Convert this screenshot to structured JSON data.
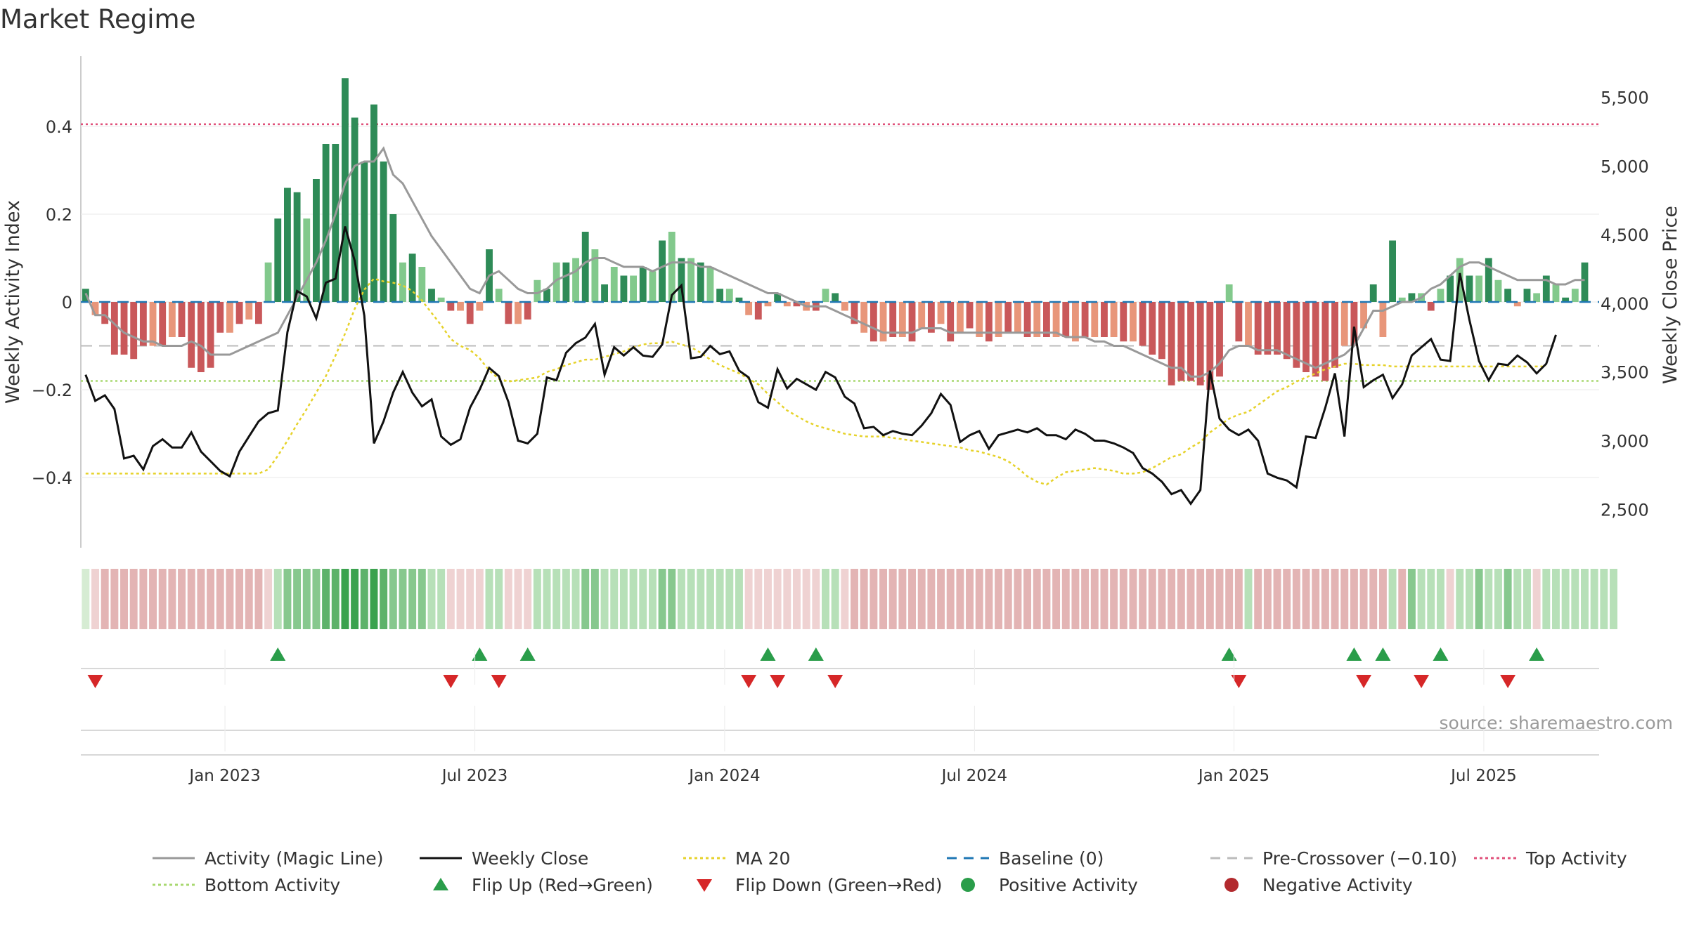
{
  "header": {
    "title": "Market Regime"
  },
  "source": "source: sharemaestro.com",
  "colors": {
    "pos_dark": "#2e8b57",
    "pos_light": "#82c98c",
    "neg_dark": "#c9585a",
    "neg_light": "#e8967a",
    "magic": "#999999",
    "close": "#111111",
    "ma20": "#e6d22a",
    "baseline": "#1f77b4",
    "precross": "#bbbbbb",
    "top": "#e0507a",
    "bottom": "#a8d870",
    "flip_up": "#2a9d4a",
    "flip_down": "#d62728"
  },
  "chart_data": {
    "type": "bar",
    "ylabel_left": "Weekly Activity Index",
    "ylabel_right": "Weekly Close Price",
    "yticks_left": [
      "0.4",
      "0.2",
      "0",
      "−0.2",
      "−0.4"
    ],
    "yticks_left_values": [
      0.4,
      0.2,
      0,
      -0.2,
      -0.4
    ],
    "yticks_right": [
      "5,500",
      "5,000",
      "4,500",
      "4,000",
      "3,500",
      "3,000",
      "2,500"
    ],
    "yticks_right_values": [
      5500,
      5000,
      4500,
      4000,
      3500,
      3000,
      2500
    ],
    "ylim_left": [
      -0.56,
      0.56
    ],
    "ylim_right": [
      2220,
      5800
    ],
    "xticks": [
      "Jan 2023",
      "Jul 2023",
      "Jan 2024",
      "Jul 2024",
      "Jan 2025",
      "Jul 2025"
    ],
    "xtick_weeks": [
      15,
      41,
      67,
      93,
      120,
      146
    ],
    "weeks": 158,
    "top_activity": 0.405,
    "bottom_activity": -0.18,
    "pre_crossover": -0.1,
    "baseline": 0,
    "activity": [
      0.03,
      -0.03,
      -0.05,
      -0.12,
      -0.12,
      -0.13,
      -0.1,
      -0.1,
      -0.1,
      -0.08,
      -0.08,
      -0.15,
      -0.16,
      -0.15,
      -0.07,
      -0.07,
      -0.05,
      -0.04,
      -0.05,
      0.09,
      0.19,
      0.26,
      0.25,
      0.19,
      0.28,
      0.36,
      0.36,
      0.51,
      0.42,
      0.32,
      0.45,
      0.32,
      0.2,
      0.09,
      0.11,
      0.08,
      0.03,
      0.01,
      -0.02,
      -0.02,
      -0.05,
      -0.02,
      0.12,
      0.03,
      -0.05,
      -0.05,
      -0.04,
      0.05,
      0.03,
      0.09,
      0.09,
      0.1,
      0.16,
      0.12,
      0.04,
      0.08,
      0.06,
      0.06,
      0.08,
      0.07,
      0.14,
      0.16,
      0.1,
      0.1,
      0.09,
      0.08,
      0.03,
      0.03,
      0.01,
      -0.03,
      -0.04,
      -0.01,
      0.02,
      -0.01,
      -0.01,
      -0.02,
      -0.02,
      0.03,
      0.02,
      -0.02,
      -0.05,
      -0.07,
      -0.09,
      -0.09,
      -0.08,
      -0.08,
      -0.09,
      -0.06,
      -0.07,
      -0.05,
      -0.09,
      -0.07,
      -0.06,
      -0.08,
      -0.09,
      -0.08,
      -0.07,
      -0.07,
      -0.08,
      -0.08,
      -0.08,
      -0.08,
      -0.08,
      -0.09,
      -0.08,
      -0.08,
      -0.08,
      -0.08,
      -0.09,
      -0.09,
      -0.1,
      -0.12,
      -0.13,
      -0.19,
      -0.18,
      -0.18,
      -0.19,
      -0.2,
      -0.17,
      0.04,
      -0.09,
      -0.1,
      -0.12,
      -0.12,
      -0.12,
      -0.13,
      -0.15,
      -0.16,
      -0.17,
      -0.18,
      -0.15,
      -0.1,
      -0.1,
      -0.06,
      0.04,
      -0.08,
      0.14,
      0.01,
      0.02,
      0.02,
      -0.02,
      0.03,
      0.06,
      0.1,
      0.06,
      0.06,
      0.1,
      0.05,
      0.03,
      -0.01,
      0.03,
      0.02,
      0.06,
      0.04,
      0.01,
      0.03,
      0.09,
      0.0
    ],
    "magic_line": [
      0.02,
      -0.03,
      -0.03,
      -0.05,
      -0.07,
      -0.08,
      -0.09,
      -0.09,
      -0.1,
      -0.1,
      -0.1,
      -0.09,
      -0.1,
      -0.12,
      -0.12,
      -0.12,
      -0.11,
      -0.1,
      -0.09,
      -0.08,
      -0.07,
      -0.03,
      0.01,
      0.05,
      0.09,
      0.14,
      0.2,
      0.27,
      0.31,
      0.32,
      0.32,
      0.35,
      0.29,
      0.27,
      0.23,
      0.19,
      0.15,
      0.12,
      0.09,
      0.06,
      0.03,
      0.02,
      0.06,
      0.07,
      0.05,
      0.03,
      0.02,
      0.02,
      0.03,
      0.05,
      0.06,
      0.07,
      0.09,
      0.1,
      0.1,
      0.09,
      0.08,
      0.08,
      0.08,
      0.07,
      0.08,
      0.09,
      0.09,
      0.09,
      0.08,
      0.08,
      0.07,
      0.06,
      0.05,
      0.04,
      0.03,
      0.02,
      0.02,
      0.01,
      0.0,
      -0.01,
      -0.01,
      -0.01,
      -0.02,
      -0.03,
      -0.04,
      -0.05,
      -0.06,
      -0.07,
      -0.07,
      -0.07,
      -0.07,
      -0.06,
      -0.06,
      -0.06,
      -0.07,
      -0.07,
      -0.07,
      -0.07,
      -0.07,
      -0.07,
      -0.07,
      -0.07,
      -0.07,
      -0.07,
      -0.07,
      -0.07,
      -0.08,
      -0.08,
      -0.08,
      -0.09,
      -0.09,
      -0.1,
      -0.1,
      -0.11,
      -0.12,
      -0.13,
      -0.14,
      -0.15,
      -0.15,
      -0.17,
      -0.17,
      -0.16,
      -0.14,
      -0.11,
      -0.1,
      -0.1,
      -0.11,
      -0.11,
      -0.11,
      -0.12,
      -0.13,
      -0.14,
      -0.15,
      -0.14,
      -0.13,
      -0.12,
      -0.1,
      -0.06,
      -0.02,
      -0.02,
      -0.01,
      0.0,
      0.0,
      0.01,
      0.03,
      0.04,
      0.06,
      0.08,
      0.09,
      0.09,
      0.08,
      0.07,
      0.06,
      0.05,
      0.05,
      0.05,
      0.05,
      0.04,
      0.04,
      0.05,
      0.05
    ],
    "weekly_close": [
      3480,
      3290,
      3330,
      3230,
      2870,
      2890,
      2790,
      2960,
      3010,
      2950,
      2950,
      3060,
      2920,
      2850,
      2780,
      2740,
      2920,
      3030,
      3140,
      3200,
      3220,
      3790,
      4090,
      4050,
      3890,
      4150,
      4180,
      4560,
      4310,
      3910,
      2980,
      3140,
      3350,
      3500,
      3350,
      3250,
      3300,
      3030,
      2970,
      3010,
      3240,
      3370,
      3530,
      3470,
      3280,
      3000,
      2980,
      3050,
      3460,
      3440,
      3640,
      3710,
      3750,
      3850,
      3480,
      3680,
      3620,
      3680,
      3620,
      3610,
      3700,
      4060,
      4130,
      3600,
      3610,
      3690,
      3630,
      3650,
      3510,
      3460,
      3280,
      3240,
      3520,
      3380,
      3450,
      3410,
      3370,
      3500,
      3460,
      3320,
      3270,
      3090,
      3100,
      3040,
      3070,
      3050,
      3040,
      3110,
      3200,
      3340,
      3260,
      2990,
      3040,
      3070,
      2940,
      3040,
      3060,
      3080,
      3060,
      3090,
      3040,
      3040,
      3010,
      3080,
      3050,
      3000,
      3000,
      2980,
      2950,
      2910,
      2800,
      2760,
      2700,
      2610,
      2640,
      2540,
      2640,
      3510,
      3160,
      3080,
      3040,
      3080,
      3000,
      2760,
      2730,
      2710,
      2660,
      3030,
      3020,
      3240,
      3490,
      3030,
      3830,
      3390,
      3440,
      3480,
      3310,
      3410,
      3620,
      3680,
      3740,
      3590,
      3580,
      4220,
      3880,
      3580,
      3440,
      3560,
      3550,
      3620,
      3570,
      3490,
      3560,
      3770
    ],
    "ma20": [
      2760,
      2760,
      2760,
      2760,
      2760,
      2760,
      2760,
      2760,
      2760,
      2760,
      2760,
      2760,
      2760,
      2760,
      2760,
      2760,
      2760,
      2760,
      2760,
      2790,
      2890,
      3000,
      3120,
      3230,
      3350,
      3470,
      3620,
      3780,
      3960,
      4100,
      4180,
      4160,
      4150,
      4130,
      4090,
      4020,
      3930,
      3840,
      3740,
      3690,
      3660,
      3600,
      3510,
      3450,
      3430,
      3440,
      3450,
      3460,
      3500,
      3520,
      3550,
      3570,
      3590,
      3590,
      3610,
      3630,
      3650,
      3680,
      3700,
      3710,
      3710,
      3720,
      3700,
      3680,
      3640,
      3590,
      3550,
      3520,
      3490,
      3450,
      3410,
      3340,
      3280,
      3220,
      3180,
      3140,
      3110,
      3090,
      3070,
      3050,
      3040,
      3030,
      3030,
      3030,
      3020,
      3010,
      3000,
      2990,
      2980,
      2970,
      2960,
      2950,
      2930,
      2920,
      2900,
      2880,
      2850,
      2800,
      2740,
      2700,
      2680,
      2730,
      2770,
      2780,
      2790,
      2800,
      2790,
      2780,
      2760,
      2760,
      2770,
      2800,
      2840,
      2880,
      2900,
      2950,
      2990,
      3060,
      3110,
      3160,
      3190,
      3210,
      3260,
      3310,
      3360,
      3390,
      3430,
      3460,
      3490,
      3520,
      3540,
      3560,
      3560,
      3550,
      3550,
      3550,
      3540,
      3540,
      3540,
      3540,
      3540,
      3540,
      3540,
      3540,
      3540,
      3540,
      3540,
      3540,
      3540,
      3540,
      3540,
      3540,
      3540
    ],
    "strip_levels": [
      0,
      -1,
      -2,
      -2,
      -2,
      -2,
      -2,
      -2,
      -2,
      -2,
      -2,
      -2,
      -2,
      -2,
      -2,
      -2,
      -2,
      -2,
      -2,
      -1,
      1,
      2,
      2,
      2,
      2,
      3,
      3,
      4,
      4,
      3,
      4,
      3,
      2,
      2,
      2,
      2,
      1,
      1,
      -1,
      -1,
      -1,
      -1,
      1,
      1,
      -1,
      -1,
      -1,
      1,
      1,
      1,
      1,
      1,
      2,
      2,
      1,
      1,
      1,
      1,
      1,
      1,
      2,
      2,
      1,
      1,
      1,
      1,
      1,
      1,
      1,
      -1,
      -1,
      -1,
      -1,
      -1,
      -1,
      -1,
      -1,
      1,
      1,
      -1,
      -2,
      -2,
      -2,
      -2,
      -2,
      -2,
      -2,
      -2,
      -2,
      -2,
      -2,
      -2,
      -2,
      -2,
      -2,
      -2,
      -2,
      -2,
      -2,
      -2,
      -2,
      -2,
      -2,
      -2,
      -2,
      -2,
      -2,
      -2,
      -2,
      -2,
      -2,
      -2,
      -2,
      -2,
      -2,
      -2,
      -2,
      -2,
      -2,
      -2,
      -2,
      1,
      -2,
      -2,
      -2,
      -2,
      -2,
      -2,
      -2,
      -2,
      -2,
      -2,
      -2,
      -2,
      -2,
      -2,
      1,
      -2,
      2,
      1,
      1,
      1,
      -1,
      1,
      1,
      2,
      1,
      1,
      2,
      1,
      1,
      -1,
      1,
      1,
      1,
      1,
      1,
      1,
      1,
      1
    ],
    "flip_up_weeks": [
      20,
      41,
      46,
      71,
      76,
      119,
      132,
      135,
      141,
      151
    ],
    "flip_down_weeks": [
      1,
      38,
      43,
      69,
      72,
      78,
      120,
      133,
      139,
      148
    ]
  },
  "legend": [
    {
      "label": "Activity (Magic Line)",
      "symbol": "solid-line",
      "color": "#999999"
    },
    {
      "label": "Weekly Close",
      "symbol": "solid-line",
      "color": "#111111"
    },
    {
      "label": "MA 20",
      "symbol": "dotted-line",
      "color": "#e6d22a"
    },
    {
      "label": "Baseline (0)",
      "symbol": "dashed-line",
      "color": "#1f77b4"
    },
    {
      "label": "Pre-Crossover (−0.10)",
      "symbol": "dashed-line",
      "color": "#bbbbbb"
    },
    {
      "label": "Top Activity",
      "symbol": "dotted-line",
      "color": "#e0507a"
    },
    {
      "label": "Bottom Activity",
      "symbol": "dotted-line",
      "color": "#a8d870"
    },
    {
      "label": "Flip Up (Red→Green)",
      "symbol": "triangle-up-icon",
      "color": "#2a9d4a"
    },
    {
      "label": "Flip Down (Green→Red)",
      "symbol": "triangle-down-icon",
      "color": "#d62728"
    },
    {
      "label": "Positive Activity",
      "symbol": "circle-icon",
      "color": "#2a9d4a"
    },
    {
      "label": "Negative Activity",
      "symbol": "circle-icon",
      "color": "#b22a2e"
    }
  ]
}
